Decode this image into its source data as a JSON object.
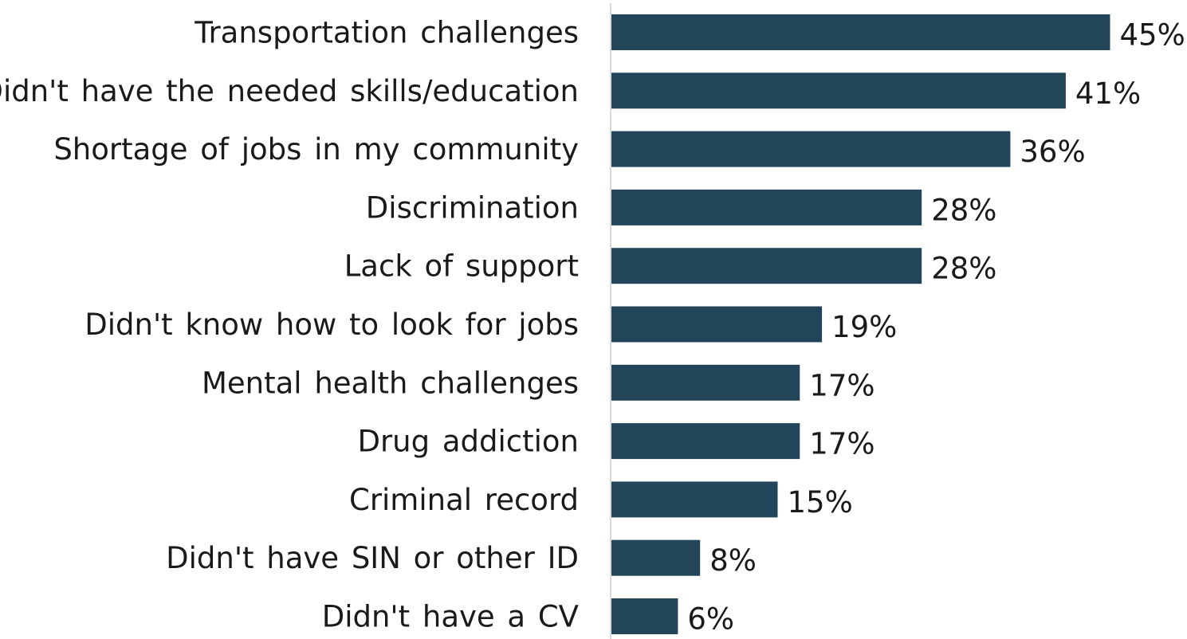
{
  "chart_data": {
    "type": "bar",
    "orientation": "horizontal",
    "categories": [
      "Transportation challenges",
      "Didn't have the needed skills/education",
      "Shortage of jobs in my community",
      "Discrimination",
      "Lack of support",
      "Didn't know how to look for jobs",
      "Mental health challenges",
      "Drug addiction",
      "Criminal record",
      "Didn't have SIN or other ID",
      "Didn't have a CV"
    ],
    "values": [
      45,
      41,
      36,
      28,
      28,
      19,
      17,
      17,
      15,
      8,
      6
    ],
    "value_labels": [
      "45%",
      "41%",
      "36%",
      "28%",
      "28%",
      "19%",
      "17%",
      "17%",
      "15%",
      "8%",
      "6%"
    ],
    "title": "",
    "xlabel": "",
    "ylabel": "",
    "xlim": [
      0,
      45
    ],
    "grid": false,
    "legend": "none",
    "colors": {
      "bar": "#23455a",
      "axis": "#d9d9d9",
      "text": "#1a1a1a"
    }
  }
}
